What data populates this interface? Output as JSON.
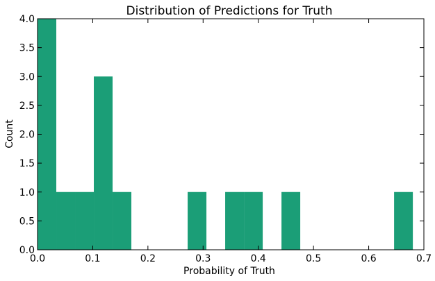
{
  "chart_data": {
    "type": "bar",
    "title": "Distribution of Predictions for Truth",
    "xlabel": "Probability of Truth",
    "ylabel": "Count",
    "xlim": [
      0.0,
      0.7
    ],
    "ylim": [
      0.0,
      4.0
    ],
    "xticks": [
      "0.0",
      "0.1",
      "0.2",
      "0.3",
      "0.4",
      "0.5",
      "0.6",
      "0.7"
    ],
    "yticks": [
      "0.0",
      "0.5",
      "1.0",
      "1.5",
      "2.0",
      "2.5",
      "3.0",
      "3.5",
      "4.0"
    ],
    "bin_width": 0.034,
    "bins": [
      {
        "x0": 0.0,
        "x1": 0.034,
        "count": 4
      },
      {
        "x0": 0.034,
        "x1": 0.068,
        "count": 1
      },
      {
        "x0": 0.068,
        "x1": 0.102,
        "count": 1
      },
      {
        "x0": 0.102,
        "x1": 0.136,
        "count": 3
      },
      {
        "x0": 0.136,
        "x1": 0.17,
        "count": 1
      },
      {
        "x0": 0.17,
        "x1": 0.204,
        "count": 0
      },
      {
        "x0": 0.204,
        "x1": 0.238,
        "count": 0
      },
      {
        "x0": 0.238,
        "x1": 0.272,
        "count": 0
      },
      {
        "x0": 0.272,
        "x1": 0.306,
        "count": 1
      },
      {
        "x0": 0.306,
        "x1": 0.34,
        "count": 0
      },
      {
        "x0": 0.34,
        "x1": 0.374,
        "count": 1
      },
      {
        "x0": 0.374,
        "x1": 0.408,
        "count": 1
      },
      {
        "x0": 0.408,
        "x1": 0.442,
        "count": 0
      },
      {
        "x0": 0.442,
        "x1": 0.476,
        "count": 1
      },
      {
        "x0": 0.476,
        "x1": 0.51,
        "count": 0
      },
      {
        "x0": 0.51,
        "x1": 0.544,
        "count": 0
      },
      {
        "x0": 0.544,
        "x1": 0.578,
        "count": 0
      },
      {
        "x0": 0.578,
        "x1": 0.612,
        "count": 0
      },
      {
        "x0": 0.612,
        "x1": 0.646,
        "count": 0
      },
      {
        "x0": 0.646,
        "x1": 0.68,
        "count": 1
      }
    ],
    "bar_color": "#1b9e77",
    "grid": false
  }
}
